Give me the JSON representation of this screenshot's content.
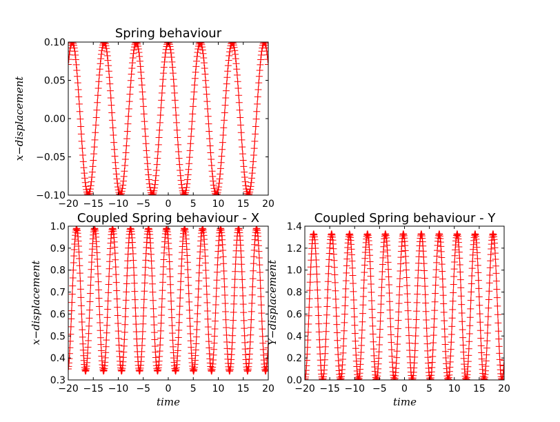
{
  "chart_data": [
    {
      "id": "spring",
      "type": "line",
      "title": "Spring behaviour",
      "xlabel": "",
      "ylabel": "x−displacement",
      "xlim": [
        -20,
        20
      ],
      "ylim": [
        -0.1,
        0.1
      ],
      "xticks": [
        -20,
        -15,
        -10,
        -5,
        0,
        5,
        10,
        15,
        20
      ],
      "xtick_labels": [
        "−20",
        "−15",
        "−10",
        "−5",
        "0",
        "5",
        "10",
        "15",
        "20"
      ],
      "yticks": [
        -0.1,
        -0.05,
        0,
        0.05,
        0.1
      ],
      "ytick_labels": [
        "−0.10",
        "−0.05",
        "0.00",
        "0.05",
        "0.10"
      ],
      "marker": "+",
      "color": "#ff0000",
      "series": [
        {
          "function": "A*cos(w*t)",
          "amplitude": 0.1,
          "offset": 0,
          "period": 6.4,
          "phase": 0,
          "x_start": -20,
          "x_end": 20,
          "samples": 400
        }
      ]
    },
    {
      "id": "coupled-x",
      "type": "line",
      "title": "Coupled Spring behaviour - X",
      "xlabel": "time",
      "ylabel": "x−displacement",
      "xlim": [
        -20,
        20
      ],
      "ylim": [
        0.3,
        1.0
      ],
      "xticks": [
        -20,
        -15,
        -10,
        -5,
        0,
        5,
        10,
        15,
        20
      ],
      "xtick_labels": [
        "−20",
        "−15",
        "−10",
        "−5",
        "0",
        "5",
        "10",
        "15",
        "20"
      ],
      "yticks": [
        0.3,
        0.4,
        0.5,
        0.6,
        0.7,
        0.8,
        0.9,
        1.0
      ],
      "ytick_labels": [
        "0.3",
        "0.4",
        "0.5",
        "0.6",
        "0.7",
        "0.8",
        "0.9",
        "1.0"
      ],
      "marker": "+",
      "color": "#ff0000",
      "series": [
        {
          "function": "offset+A*cos(w*t)",
          "amplitude": 0.325,
          "offset": 0.665,
          "period": 3.6,
          "phase": 0.6,
          "x_start": -20,
          "x_end": 20,
          "samples": 600
        }
      ]
    },
    {
      "id": "coupled-y",
      "type": "line",
      "title": "Coupled Spring behaviour - Y",
      "xlabel": "time",
      "ylabel": "Y−displacement",
      "xlim": [
        -20,
        20
      ],
      "ylim": [
        0.0,
        1.4
      ],
      "xticks": [
        -20,
        -15,
        -10,
        -5,
        0,
        5,
        10,
        15,
        20
      ],
      "xtick_labels": [
        "−20",
        "−15",
        "−10",
        "−5",
        "0",
        "5",
        "10",
        "15",
        "20"
      ],
      "yticks": [
        0.0,
        0.2,
        0.4,
        0.6,
        0.8,
        1.0,
        1.2,
        1.4
      ],
      "ytick_labels": [
        "0.0",
        "0.2",
        "0.4",
        "0.6",
        "0.8",
        "1.0",
        "1.2",
        "1.4"
      ],
      "marker": "+",
      "color": "#ff0000",
      "series": [
        {
          "function": "offset+A*cos(w*t)",
          "amplitude": 0.665,
          "offset": 0.665,
          "period": 3.6,
          "phase": 0.4,
          "x_start": -20,
          "x_end": 20,
          "samples": 600
        }
      ]
    }
  ]
}
